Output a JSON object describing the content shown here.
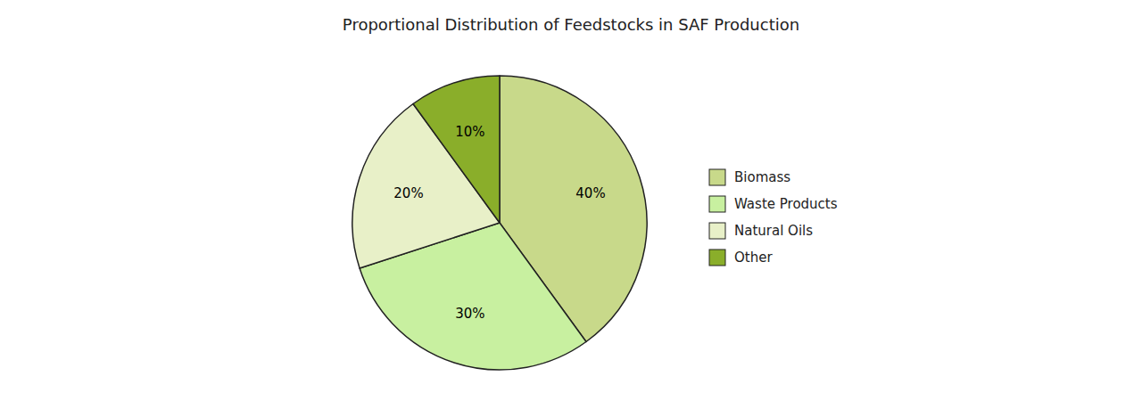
{
  "chart_data": {
    "type": "pie",
    "title": "Proportional Distribution of Feedstocks in SAF Production",
    "categories": [
      "Biomass",
      "Waste Products",
      "Natural Oils",
      "Other"
    ],
    "values": [
      40,
      30,
      20,
      10
    ],
    "value_labels": [
      "40%",
      "30%",
      "20%",
      "10%"
    ],
    "colors": [
      "#c8d98a",
      "#c8f0a0",
      "#e8f0c8",
      "#8aae2a"
    ],
    "data_labels": true,
    "legend": "right"
  }
}
